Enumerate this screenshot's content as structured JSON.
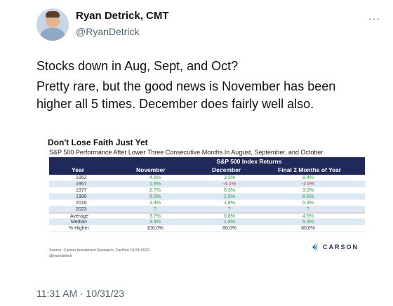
{
  "author": {
    "name": "Ryan Detrick, CMT",
    "handle": "@RyanDetrick"
  },
  "menu_glyph": "···",
  "tweet": {
    "line1": "Stocks down in Aug, Sept, and Oct?",
    "line2": "Pretty rare, but the good news is November has been higher all 5 times. December does fairly well also."
  },
  "image": {
    "title": "Don't Lose Faith Just Yet",
    "subtitle": "S&P 500 Performance After Lower Three Consecutive Months In August, September, and October",
    "group_header": "S&P 500 Index Returns",
    "columns": [
      "Year",
      "November",
      "December",
      "Final 2 Months of Year"
    ],
    "rows": [
      {
        "year": "1952",
        "nov": "4.6%",
        "dec": "3.5%",
        "two": "8.4%"
      },
      {
        "year": "1957",
        "nov": "1.6%",
        "dec": "-4.1%",
        "two": "-2.6%"
      },
      {
        "year": "1977",
        "nov": "2.7%",
        "dec": "0.3%",
        "two": "3.0%"
      },
      {
        "year": "1990",
        "nov": "6.0%",
        "dec": "2.5%",
        "two": "8.6%"
      },
      {
        "year": "2016",
        "nov": "3.4%",
        "dec": "1.8%",
        "two": "5.3%"
      },
      {
        "year": "2023",
        "nov": "?",
        "dec": "?",
        "two": "?"
      }
    ],
    "summary": [
      {
        "label": "Average",
        "nov": "3.7%",
        "dec": "0.8%",
        "two": "4.5%"
      },
      {
        "label": "Median",
        "nov": "3.4%",
        "dec": "1.8%",
        "two": "5.3%"
      },
      {
        "label": "% Higher",
        "nov": "100.0%",
        "dec": "80.0%",
        "two": "80.0%"
      }
    ],
    "source": "Source: Carson Investment Research, FactSet 10/31/2023",
    "credit": "@ryandetrick",
    "logo_text": "CARSON",
    "colors": {
      "header": "#1f2a5a",
      "positive": "#2f9a3a",
      "negative": "#d23a2a",
      "alt_row": "#dce8f4"
    }
  },
  "timestamp": "11:31 AM · 10/31/23"
}
